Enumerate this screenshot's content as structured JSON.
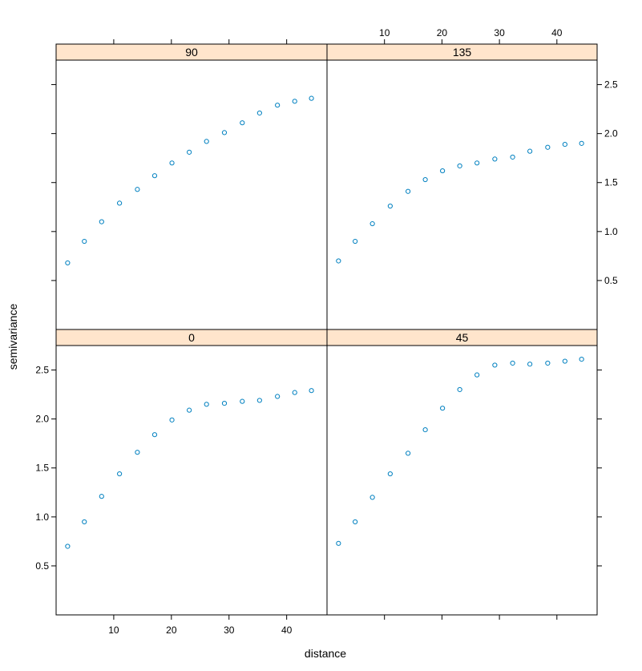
{
  "chart_data": {
    "type": "scatter",
    "layout": "2x2 trellis panels with shared axes",
    "xlabel": "distance",
    "ylabel": "semivariance",
    "xlim": [
      0,
      47
    ],
    "ylim": [
      0,
      2.75
    ],
    "x_ticks": [
      10,
      20,
      30,
      40
    ],
    "y_ticks": [
      0.5,
      1.0,
      1.5,
      2.0,
      2.5
    ],
    "x_tick_labels": [
      "10",
      "20",
      "30",
      "40"
    ],
    "y_tick_labels": [
      "0.5",
      "1.0",
      "1.5",
      "2.0",
      "2.5"
    ],
    "marker": "circle",
    "point_color": "#0080c0",
    "strip_color": "#ffe5cc",
    "x": [
      2.0,
      4.9,
      7.9,
      11.0,
      14.1,
      17.1,
      20.1,
      23.1,
      26.1,
      29.2,
      32.3,
      35.3,
      38.4,
      41.4,
      44.3
    ],
    "panels": [
      {
        "label": "90",
        "position": "top-left",
        "y": [
          0.68,
          0.9,
          1.1,
          1.29,
          1.43,
          1.57,
          1.7,
          1.81,
          1.92,
          2.01,
          2.11,
          2.21,
          2.29,
          2.33,
          2.36
        ]
      },
      {
        "label": "135",
        "position": "top-right",
        "y": [
          0.7,
          0.9,
          1.08,
          1.26,
          1.41,
          1.53,
          1.62,
          1.67,
          1.7,
          1.74,
          1.76,
          1.82,
          1.86,
          1.89,
          1.9
        ]
      },
      {
        "label": "0",
        "position": "bottom-left",
        "y": [
          0.7,
          0.95,
          1.21,
          1.44,
          1.66,
          1.84,
          1.99,
          2.09,
          2.15,
          2.16,
          2.18,
          2.19,
          2.23,
          2.27,
          2.29
        ]
      },
      {
        "label": "45",
        "position": "bottom-right",
        "y": [
          0.73,
          0.95,
          1.2,
          1.44,
          1.65,
          1.89,
          2.11,
          2.3,
          2.45,
          2.55,
          2.57,
          2.56,
          2.57,
          2.59,
          2.61
        ]
      }
    ]
  }
}
